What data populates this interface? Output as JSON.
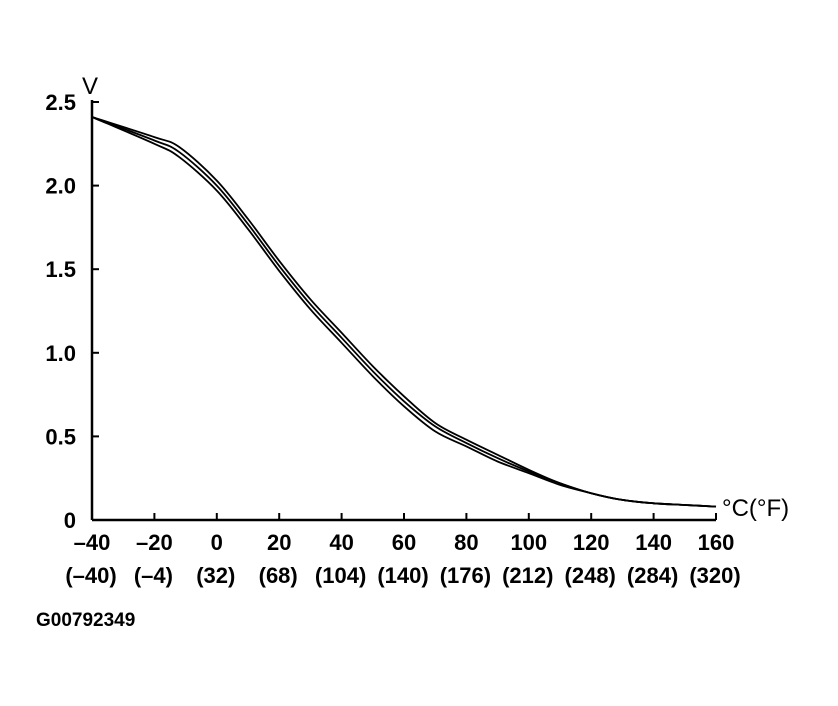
{
  "figure_id": "G00792349",
  "chart_data": {
    "type": "line",
    "ylabel": "V",
    "xlabel": "°C(°F)",
    "xlim": [
      -40,
      160
    ],
    "ylim": [
      0,
      2.5
    ],
    "x_ticks": [
      -40,
      -20,
      0,
      20,
      40,
      60,
      80,
      100,
      120,
      140,
      160
    ],
    "x_tick_labels": [
      "–40",
      "–20",
      "0",
      "20",
      "40",
      "60",
      "80",
      "100",
      "120",
      "140",
      "160"
    ],
    "x_tick_labels_f": [
      "(–40)",
      "(–4)",
      "(32)",
      "(68)",
      "(104)",
      "(140)",
      "(176)",
      "(212)",
      "(248)",
      "(284)",
      "(320)"
    ],
    "y_ticks": [
      0,
      0.5,
      1.0,
      1.5,
      2.0,
      2.5
    ],
    "y_tick_labels": [
      "0",
      "0.5",
      "1.0",
      "1.5",
      "2.0",
      "2.5"
    ],
    "grid": false,
    "series": [
      {
        "x": [
          -40,
          -20,
          -12,
          0,
          10,
          20,
          30,
          40,
          50,
          60,
          70,
          80,
          90,
          100,
          110,
          120,
          130,
          140,
          150,
          160
        ],
        "values": [
          2.41,
          2.29,
          2.23,
          2.03,
          1.8,
          1.55,
          1.32,
          1.12,
          0.92,
          0.74,
          0.58,
          0.48,
          0.39,
          0.3,
          0.22,
          0.16,
          0.12,
          0.1,
          0.09,
          0.08
        ]
      },
      {
        "x": [
          -40,
          -20,
          -12,
          0,
          10,
          20,
          30,
          40,
          50,
          60,
          70,
          80,
          90,
          100,
          110,
          120,
          130,
          140,
          150,
          160
        ],
        "values": [
          2.41,
          2.27,
          2.2,
          2.0,
          1.77,
          1.52,
          1.29,
          1.09,
          0.89,
          0.71,
          0.56,
          0.46,
          0.37,
          0.29,
          0.22,
          0.16,
          0.12,
          0.1,
          0.09,
          0.08
        ]
      },
      {
        "x": [
          -40,
          -20,
          -12,
          0,
          10,
          20,
          30,
          40,
          50,
          60,
          70,
          80,
          90,
          100,
          110,
          120,
          130,
          140,
          150,
          160
        ],
        "values": [
          2.41,
          2.25,
          2.17,
          1.97,
          1.74,
          1.49,
          1.26,
          1.06,
          0.86,
          0.68,
          0.53,
          0.44,
          0.35,
          0.28,
          0.21,
          0.16,
          0.12,
          0.1,
          0.09,
          0.08
        ]
      }
    ]
  }
}
